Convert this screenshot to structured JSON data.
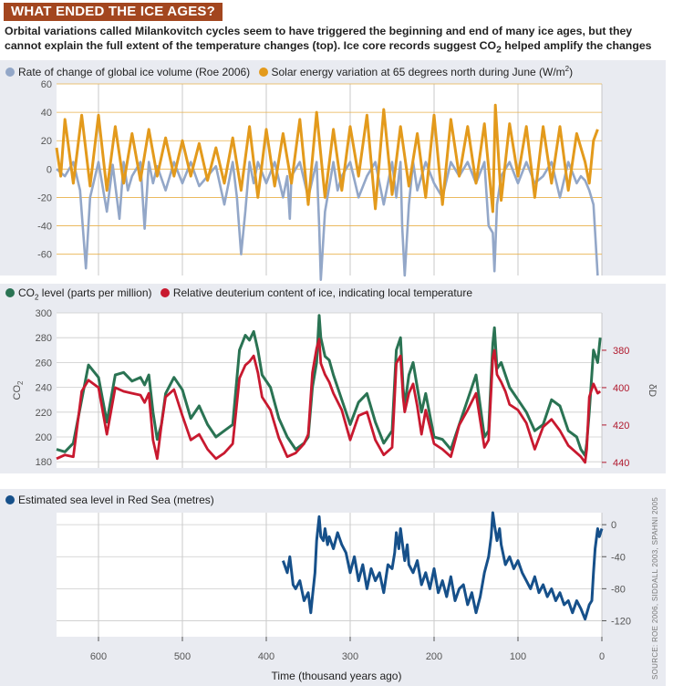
{
  "header": {
    "banner": "WHAT ENDED THE ICE AGES?",
    "intro_a": "Orbital variations called Milankovitch cycles seem to have triggered the beginning and end of many ice ages, but they cannot explain the full extent of the temperature changes (top). Ice core records suggest CO",
    "intro_sub": "2",
    "intro_b": " helped amplify the changes (middle)"
  },
  "colors": {
    "ice_volume": "#93a7c8",
    "solar": "#e39a1c",
    "co2": "#2a7353",
    "deuterium": "#c8192f",
    "sea_level": "#16508a",
    "banner": "#a3461f"
  },
  "chart_data": [
    {
      "type": "line",
      "legend": [
        {
          "label": "Rate of change of global ice volume (Roe 2006)"
        },
        {
          "label": "Solar energy variation at 65 degrees north during June (W/m",
          "sup": "2",
          "tail": ")"
        }
      ],
      "ylim": [
        -75,
        60
      ],
      "yticks": [
        60,
        40,
        20,
        0,
        -20,
        -40,
        -60
      ],
      "xlim": [
        650,
        0
      ],
      "series": [
        {
          "name": "Rate of change of global ice volume (Roe 2006)",
          "x": [
            650,
            640,
            630,
            622,
            615,
            610,
            600,
            590,
            583,
            575,
            570,
            565,
            560,
            550,
            545,
            540,
            535,
            530,
            520,
            510,
            500,
            490,
            480,
            470,
            460,
            450,
            440,
            435,
            430,
            425,
            420,
            415,
            410,
            400,
            390,
            380,
            375,
            372,
            370,
            360,
            350,
            340,
            337,
            335,
            330,
            320,
            315,
            310,
            300,
            290,
            280,
            270,
            260,
            250,
            245,
            240,
            238,
            235,
            230,
            225,
            220,
            210,
            200,
            190,
            180,
            170,
            160,
            150,
            140,
            135,
            130,
            128,
            125,
            120,
            110,
            100,
            90,
            80,
            70,
            60,
            50,
            40,
            30,
            25,
            20,
            15,
            10,
            5
          ],
          "values": [
            0,
            -5,
            5,
            -15,
            -70,
            -20,
            5,
            -30,
            3,
            -35,
            5,
            -15,
            -5,
            5,
            -42,
            5,
            -10,
            2,
            -15,
            5,
            -10,
            5,
            -12,
            -5,
            2,
            -25,
            5,
            -20,
            -60,
            -30,
            5,
            -10,
            5,
            -10,
            5,
            -20,
            -5,
            -35,
            -5,
            5,
            -20,
            5,
            -40,
            -78,
            -30,
            5,
            -15,
            -5,
            5,
            -20,
            -5,
            5,
            -25,
            5,
            -20,
            5,
            -40,
            -75,
            -25,
            5,
            -15,
            5,
            -10,
            -20,
            5,
            -5,
            5,
            -10,
            5,
            -40,
            -45,
            -72,
            -25,
            -5,
            5,
            -10,
            5,
            -10,
            -5,
            5,
            -20,
            5,
            -10,
            -5,
            -8,
            -15,
            -25,
            -75
          ]
        },
        {
          "name": "Solar energy variation at 65 degrees north during June (W/m2)",
          "x": [
            650,
            645,
            640,
            630,
            620,
            610,
            600,
            590,
            580,
            570,
            560,
            550,
            540,
            530,
            520,
            510,
            500,
            490,
            480,
            470,
            460,
            450,
            440,
            430,
            420,
            410,
            400,
            390,
            380,
            370,
            360,
            350,
            340,
            330,
            320,
            310,
            300,
            290,
            280,
            270,
            260,
            250,
            240,
            230,
            220,
            210,
            200,
            190,
            180,
            170,
            160,
            150,
            140,
            130,
            127,
            120,
            110,
            100,
            90,
            80,
            70,
            60,
            50,
            40,
            30,
            20,
            15,
            10,
            5
          ],
          "values": [
            15,
            -5,
            35,
            -10,
            38,
            -12,
            38,
            -15,
            30,
            -10,
            25,
            -8,
            28,
            -5,
            22,
            -5,
            20,
            -5,
            18,
            -8,
            15,
            -10,
            22,
            -15,
            30,
            -20,
            28,
            -12,
            25,
            -10,
            35,
            -25,
            40,
            -20,
            28,
            -15,
            30,
            -5,
            38,
            -28,
            42,
            -18,
            30,
            -12,
            25,
            -20,
            38,
            -25,
            35,
            -5,
            30,
            -10,
            32,
            -30,
            45,
            -22,
            32,
            -5,
            30,
            -20,
            30,
            -10,
            30,
            -15,
            25,
            5,
            -10,
            20,
            28
          ]
        }
      ]
    },
    {
      "type": "line",
      "legend": [
        {
          "label_pre": "CO",
          "sub": "2",
          "label": " level (parts per million)"
        },
        {
          "label": "Relative deuterium content of ice, indicating local temperature"
        }
      ],
      "ylabel_pre": "CO",
      "ylabel_sub": "2",
      "ylim": [
        175,
        300
      ],
      "yticks": [
        300,
        280,
        260,
        240,
        220,
        200,
        180
      ],
      "y2label": "δD",
      "y2lim": [
        443,
        360
      ],
      "y2ticks": [
        380,
        400,
        420,
        440
      ],
      "xlim": [
        650,
        0
      ],
      "series": [
        {
          "name": "CO2 level (parts per million)",
          "x": [
            650,
            640,
            630,
            620,
            612,
            600,
            590,
            580,
            570,
            560,
            550,
            545,
            540,
            535,
            530,
            525,
            520,
            510,
            500,
            490,
            480,
            470,
            460,
            450,
            440,
            432,
            425,
            420,
            415,
            410,
            405,
            395,
            385,
            375,
            365,
            355,
            350,
            345,
            340,
            337,
            335,
            330,
            325,
            320,
            310,
            300,
            290,
            280,
            270,
            260,
            250,
            245,
            240,
            237,
            235,
            230,
            225,
            220,
            215,
            210,
            200,
            190,
            180,
            170,
            160,
            150,
            140,
            135,
            130,
            128,
            125,
            120,
            115,
            110,
            100,
            90,
            80,
            70,
            60,
            50,
            40,
            30,
            25,
            20,
            18,
            15,
            10,
            5,
            2
          ],
          "values": [
            190,
            188,
            195,
            230,
            258,
            248,
            212,
            250,
            252,
            245,
            248,
            242,
            250,
            220,
            198,
            210,
            235,
            248,
            238,
            215,
            225,
            210,
            200,
            205,
            210,
            270,
            282,
            278,
            285,
            270,
            250,
            240,
            215,
            200,
            190,
            195,
            200,
            240,
            260,
            298,
            280,
            265,
            262,
            250,
            230,
            210,
            228,
            235,
            212,
            195,
            205,
            270,
            280,
            240,
            225,
            250,
            260,
            240,
            220,
            235,
            200,
            198,
            190,
            210,
            230,
            250,
            200,
            205,
            275,
            288,
            255,
            260,
            250,
            240,
            230,
            220,
            205,
            210,
            230,
            225,
            205,
            200,
            190,
            185,
            195,
            220,
            270,
            260,
            280
          ]
        },
        {
          "name": "Relative deuterium content of ice",
          "x": [
            650,
            640,
            630,
            620,
            612,
            600,
            590,
            580,
            570,
            560,
            550,
            545,
            540,
            535,
            530,
            525,
            520,
            510,
            500,
            490,
            480,
            470,
            460,
            450,
            440,
            432,
            425,
            420,
            415,
            410,
            405,
            395,
            385,
            375,
            365,
            355,
            350,
            345,
            340,
            337,
            335,
            330,
            325,
            320,
            310,
            300,
            290,
            280,
            270,
            260,
            250,
            245,
            240,
            237,
            235,
            230,
            225,
            220,
            215,
            210,
            200,
            190,
            180,
            170,
            160,
            150,
            140,
            135,
            130,
            128,
            125,
            120,
            115,
            110,
            100,
            90,
            80,
            70,
            60,
            50,
            40,
            30,
            25,
            20,
            18,
            15,
            10,
            5,
            2
          ],
          "values": [
            438,
            436,
            437,
            402,
            396,
            400,
            425,
            400,
            402,
            403,
            404,
            408,
            403,
            428,
            438,
            420,
            405,
            401,
            415,
            428,
            425,
            433,
            438,
            435,
            430,
            395,
            388,
            386,
            383,
            392,
            405,
            412,
            427,
            437,
            435,
            430,
            425,
            392,
            379,
            374,
            387,
            393,
            397,
            403,
            412,
            428,
            415,
            413,
            428,
            436,
            432,
            387,
            383,
            405,
            413,
            403,
            398,
            410,
            425,
            412,
            430,
            433,
            437,
            420,
            412,
            403,
            432,
            428,
            384,
            380,
            393,
            397,
            402,
            409,
            412,
            419,
            433,
            421,
            417,
            423,
            431,
            435,
            437,
            440,
            433,
            405,
            398,
            403,
            402
          ]
        }
      ]
    },
    {
      "type": "line",
      "legend": [
        {
          "label": "Estimated sea level in Red Sea (metres)"
        }
      ],
      "ylim": [
        -140,
        15
      ],
      "yticks": [
        0,
        -40,
        -80,
        -120
      ],
      "xlim": [
        650,
        0
      ],
      "xticks": [
        600,
        500,
        400,
        300,
        200,
        100,
        0
      ],
      "xlabel": "Time (thousand years ago)",
      "series": [
        {
          "name": "Estimated sea level in Red Sea (metres)",
          "x": [
            380,
            375,
            372,
            368,
            365,
            360,
            355,
            350,
            347,
            345,
            342,
            340,
            337,
            335,
            332,
            330,
            327,
            325,
            320,
            315,
            310,
            305,
            300,
            295,
            290,
            285,
            280,
            275,
            270,
            265,
            260,
            255,
            250,
            247,
            245,
            242,
            240,
            237,
            235,
            232,
            230,
            225,
            220,
            215,
            210,
            205,
            200,
            195,
            190,
            185,
            180,
            175,
            170,
            165,
            160,
            155,
            150,
            145,
            140,
            135,
            132,
            130,
            128,
            125,
            122,
            120,
            115,
            110,
            105,
            100,
            95,
            90,
            85,
            80,
            75,
            70,
            65,
            60,
            55,
            50,
            45,
            40,
            35,
            30,
            25,
            20,
            15,
            12,
            10,
            8,
            5,
            3,
            0
          ],
          "values": [
            -45,
            -60,
            -40,
            -75,
            -80,
            -70,
            -95,
            -85,
            -110,
            -90,
            -60,
            -20,
            10,
            -15,
            -20,
            -5,
            -25,
            -15,
            -30,
            -10,
            -25,
            -35,
            -60,
            -40,
            -70,
            -50,
            -80,
            -55,
            -70,
            -60,
            -85,
            -50,
            -55,
            -35,
            -10,
            -30,
            -5,
            -30,
            -45,
            -25,
            -50,
            -60,
            -45,
            -75,
            -60,
            -80,
            -55,
            -85,
            -70,
            -90,
            -65,
            -95,
            -80,
            -75,
            -100,
            -85,
            -110,
            -90,
            -60,
            -40,
            -15,
            15,
            0,
            -20,
            -5,
            -25,
            -50,
            -40,
            -55,
            -45,
            -60,
            -70,
            -80,
            -65,
            -85,
            -75,
            -90,
            -80,
            -95,
            -85,
            -100,
            -95,
            -110,
            -95,
            -105,
            -118,
            -100,
            -95,
            -60,
            -30,
            -5,
            -15,
            -5
          ]
        }
      ]
    }
  ],
  "footer": {
    "source": "SOURCE: ROE 2006, SIDDALL 2003, SPAHNI 2005"
  }
}
